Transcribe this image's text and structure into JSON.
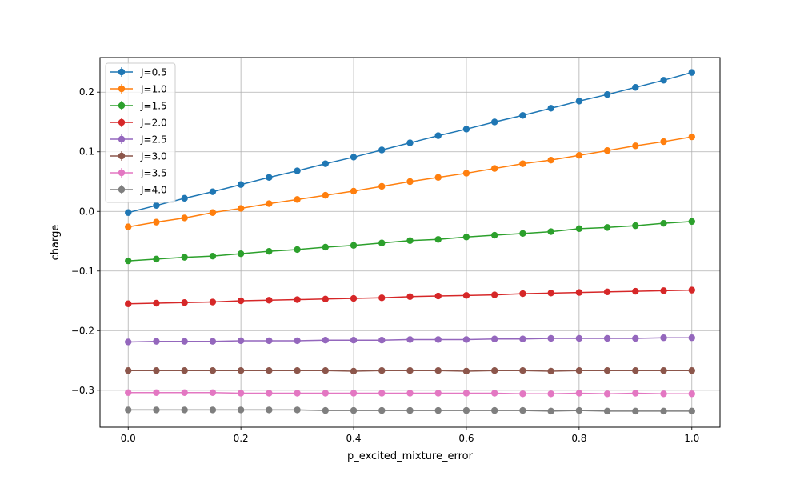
{
  "chart_data": {
    "type": "line",
    "title": "",
    "xlabel": "p_excited_mixture_error",
    "ylabel": "charge",
    "xlim": [
      -0.05,
      1.05
    ],
    "ylim": [
      -0.362,
      0.258
    ],
    "xticks": [
      0.0,
      0.2,
      0.4,
      0.6,
      0.8,
      1.0
    ],
    "xtick_labels": [
      "0.0",
      "0.2",
      "0.4",
      "0.6",
      "0.8",
      "1.0"
    ],
    "yticks": [
      -0.3,
      -0.2,
      -0.1,
      0.0,
      0.1,
      0.2
    ],
    "ytick_labels": [
      "−0.3",
      "−0.2",
      "−0.1",
      "0.0",
      "0.1",
      "0.2"
    ],
    "grid": true,
    "legend_position": "upper-left",
    "x": [
      0.0,
      0.05,
      0.1,
      0.15,
      0.2,
      0.25,
      0.3,
      0.35,
      0.4,
      0.45,
      0.5,
      0.55,
      0.6,
      0.65,
      0.7,
      0.75,
      0.8,
      0.85,
      0.9,
      0.95,
      1.0
    ],
    "series": [
      {
        "name": "J=0.5",
        "color": "#1f77b4",
        "values": [
          -0.002,
          0.01,
          0.022,
          0.033,
          0.045,
          0.057,
          0.068,
          0.08,
          0.091,
          0.103,
          0.115,
          0.127,
          0.138,
          0.15,
          0.161,
          0.173,
          0.185,
          0.196,
          0.208,
          0.22,
          0.233
        ]
      },
      {
        "name": "J=1.0",
        "color": "#ff7f0e",
        "values": [
          -0.026,
          -0.018,
          -0.011,
          -0.002,
          0.005,
          0.013,
          0.02,
          0.027,
          0.034,
          0.042,
          0.05,
          0.057,
          0.064,
          0.072,
          0.08,
          0.086,
          0.094,
          0.102,
          0.11,
          0.117,
          0.125
        ]
      },
      {
        "name": "J=1.5",
        "color": "#2ca02c",
        "values": [
          -0.083,
          -0.08,
          -0.077,
          -0.075,
          -0.071,
          -0.067,
          -0.064,
          -0.06,
          -0.057,
          -0.053,
          -0.049,
          -0.047,
          -0.043,
          -0.04,
          -0.037,
          -0.034,
          -0.029,
          -0.027,
          -0.024,
          -0.02,
          -0.017
        ]
      },
      {
        "name": "J=2.0",
        "color": "#d62728",
        "values": [
          -0.155,
          -0.154,
          -0.153,
          -0.152,
          -0.15,
          -0.149,
          -0.148,
          -0.147,
          -0.146,
          -0.145,
          -0.143,
          -0.142,
          -0.141,
          -0.14,
          -0.138,
          -0.137,
          -0.136,
          -0.135,
          -0.134,
          -0.133,
          -0.132
        ]
      },
      {
        "name": "J=2.5",
        "color": "#9467bd",
        "values": [
          -0.219,
          -0.218,
          -0.218,
          -0.218,
          -0.217,
          -0.217,
          -0.217,
          -0.216,
          -0.216,
          -0.216,
          -0.215,
          -0.215,
          -0.215,
          -0.214,
          -0.214,
          -0.213,
          -0.213,
          -0.213,
          -0.213,
          -0.212,
          -0.212
        ]
      },
      {
        "name": "J=3.0",
        "color": "#8c564b",
        "values": [
          -0.267,
          -0.267,
          -0.267,
          -0.267,
          -0.267,
          -0.267,
          -0.267,
          -0.267,
          -0.268,
          -0.267,
          -0.267,
          -0.267,
          -0.268,
          -0.267,
          -0.267,
          -0.268,
          -0.267,
          -0.267,
          -0.267,
          -0.267,
          -0.267
        ]
      },
      {
        "name": "J=3.5",
        "color": "#e377c2",
        "values": [
          -0.304,
          -0.304,
          -0.304,
          -0.304,
          -0.305,
          -0.305,
          -0.305,
          -0.305,
          -0.305,
          -0.305,
          -0.305,
          -0.305,
          -0.305,
          -0.305,
          -0.306,
          -0.306,
          -0.305,
          -0.306,
          -0.305,
          -0.306,
          -0.306
        ]
      },
      {
        "name": "J=4.0",
        "color": "#7f7f7f",
        "values": [
          -0.333,
          -0.333,
          -0.333,
          -0.333,
          -0.333,
          -0.333,
          -0.333,
          -0.334,
          -0.334,
          -0.334,
          -0.334,
          -0.334,
          -0.334,
          -0.334,
          -0.334,
          -0.335,
          -0.334,
          -0.335,
          -0.335,
          -0.335,
          -0.335
        ]
      }
    ]
  }
}
